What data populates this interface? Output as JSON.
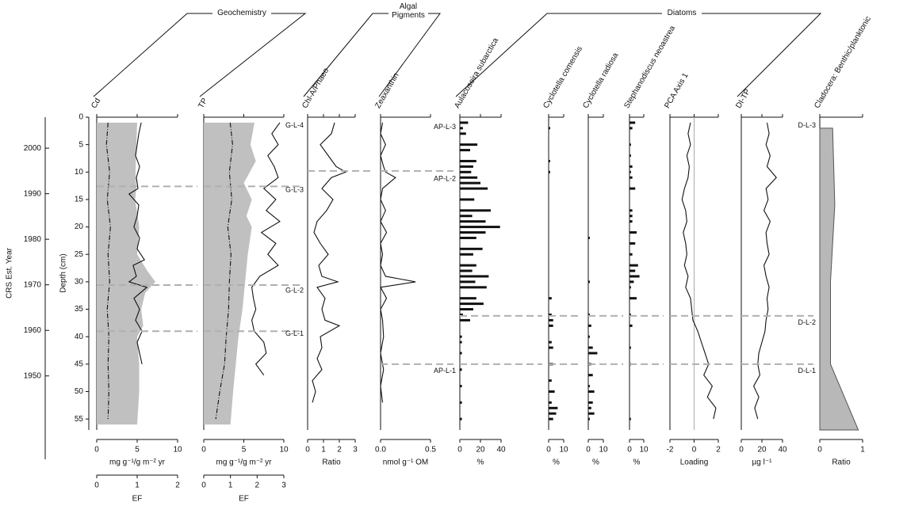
{
  "groups": [
    "Geochemistry",
    "Algal Pigments",
    "Diatoms"
  ],
  "depth_axis": {
    "label": "Depth (cm)",
    "ylim": [
      0,
      57
    ],
    "yticks": [
      0,
      5,
      10,
      15,
      20,
      25,
      30,
      35,
      40,
      45,
      50,
      55
    ]
  },
  "year_axis": {
    "label": "CRS Est. Year",
    "ylim": [
      2006.8,
      1931.7
    ],
    "yticks": [
      2000,
      1990,
      1980,
      1970,
      1960,
      1950
    ]
  },
  "chart_data": [
    {
      "type": "line",
      "title": "Cd",
      "xlabel": "mg g⁻¹/g m⁻² yr",
      "xlim": [
        0,
        10
      ],
      "xticks": [
        0,
        5,
        10
      ],
      "x2label": "EF",
      "x2lim": [
        0,
        2
      ],
      "x2ticks": [
        0,
        1,
        2
      ],
      "boundaries": [
        12.6,
        30.6,
        39
      ],
      "series": [
        {
          "type": "area",
          "axis": "x2",
          "color": "#c0c0c0",
          "depth": [
            1,
            5,
            10,
            13,
            15,
            20,
            25,
            28,
            30,
            32,
            35,
            38,
            40,
            45,
            50,
            56
          ],
          "values": [
            1.0,
            0.98,
            0.96,
            0.98,
            0.95,
            1.05,
            1.0,
            1.25,
            1.45,
            1.2,
            1.1,
            1.15,
            1.0,
            1.05,
            1.05,
            1.0
          ]
        },
        {
          "type": "line",
          "dash": "6 2 1 2",
          "color": "#111111",
          "depth": [
            1,
            5,
            10,
            15,
            20,
            25,
            30,
            35,
            40,
            45,
            50,
            55
          ],
          "values": [
            1.4,
            1.2,
            1.6,
            1.3,
            1.7,
            1.4,
            1.6,
            1.3,
            1.5,
            1.4,
            1.5,
            1.4
          ]
        },
        {
          "type": "line",
          "color": "#111111",
          "depth": [
            1,
            3,
            5,
            7,
            9,
            11,
            13,
            14,
            16,
            18,
            20,
            22,
            24,
            26,
            27,
            29,
            30,
            31,
            33,
            35,
            37,
            39,
            41,
            43,
            45
          ],
          "values": [
            5.5,
            5.2,
            5.0,
            4.8,
            5.3,
            4.9,
            5.1,
            4.0,
            5.2,
            5.0,
            4.6,
            5.3,
            5.0,
            5.9,
            4.5,
            4.9,
            4.0,
            6.2,
            4.6,
            5.3,
            4.8,
            5.6,
            5.0,
            5.3,
            5.6
          ]
        }
      ]
    },
    {
      "type": "line",
      "title": "TP",
      "xlabel": "mg g⁻¹/g m⁻² yr",
      "xlim": [
        0,
        10
      ],
      "xticks": [
        0,
        5,
        10
      ],
      "x2label": "EF",
      "x2lim": [
        0,
        3
      ],
      "x2ticks": [
        0,
        1,
        2,
        3
      ],
      "boundaries": [
        12.6,
        30.6,
        39
      ],
      "series": [
        {
          "type": "area",
          "axis": "x2",
          "color": "#c0c0c0",
          "depth": [
            1,
            5,
            8,
            12,
            15,
            18,
            20,
            25,
            30,
            35,
            40,
            45,
            50,
            56
          ],
          "values": [
            1.9,
            1.75,
            1.95,
            1.5,
            1.8,
            1.6,
            1.8,
            1.65,
            1.55,
            1.45,
            1.3,
            1.2,
            1.1,
            1.0
          ]
        },
        {
          "type": "line",
          "dash": "6 2 1 2",
          "color": "#111111",
          "depth": [
            1,
            5,
            10,
            15,
            20,
            25,
            30,
            35,
            40,
            45,
            50,
            55
          ],
          "values": [
            3.3,
            3.6,
            3.2,
            3.5,
            3.0,
            3.4,
            3.2,
            3.1,
            2.8,
            2.6,
            2.0,
            1.5
          ]
        },
        {
          "type": "line",
          "color": "#111111",
          "depth": [
            1,
            3,
            5,
            7,
            9,
            11,
            13,
            15,
            17,
            19,
            21,
            23,
            25,
            27,
            29,
            31,
            33,
            35,
            37,
            39,
            41,
            43,
            45,
            47
          ],
          "values": [
            9.5,
            8.5,
            9.3,
            8.0,
            8.8,
            9.3,
            7.5,
            9.0,
            7.8,
            9.5,
            7.2,
            9.0,
            8.0,
            9.3,
            7.0,
            6.0,
            6.2,
            6.5,
            6.0,
            6.3,
            7.5,
            7.8,
            6.5,
            7.5
          ]
        }
      ]
    },
    {
      "type": "line",
      "title": "Chl-A/Phaeo",
      "xlabel": "Ratio",
      "xlim": [
        0,
        3
      ],
      "xticks": [
        0,
        1,
        2,
        3
      ],
      "boundaries": [
        9.8
      ],
      "zones": [
        {
          "label": "G-L-4",
          "depth": 1.5
        },
        {
          "label": "G-L-3",
          "depth": 13.3
        },
        {
          "label": "G-L-2",
          "depth": 31.6
        },
        {
          "label": "G-L-1",
          "depth": 39.5
        }
      ],
      "series": [
        {
          "type": "line",
          "color": "#111111",
          "depth": [
            1,
            3,
            5,
            7,
            9,
            10,
            11,
            13,
            15,
            17,
            19,
            21,
            23,
            25,
            27,
            29,
            30,
            31,
            33,
            35,
            37,
            38,
            40,
            42,
            44,
            46,
            48,
            50,
            52
          ],
          "values": [
            1.7,
            1.5,
            0.8,
            1.3,
            1.8,
            2.4,
            1.5,
            0.9,
            1.6,
            1.2,
            0.6,
            0.4,
            0.8,
            1.3,
            0.7,
            0.9,
            1.9,
            0.6,
            1.1,
            0.9,
            1.1,
            2.0,
            0.8,
            0.9,
            0.6,
            0.9,
            0.3,
            0.5,
            0.3
          ]
        }
      ]
    },
    {
      "type": "line",
      "title": "Zeaxanthin",
      "xlabel": "nmol g⁻¹ OM",
      "xlim": [
        0,
        0.5
      ],
      "xticks": [
        {
          "value": 0,
          "label": "0.0"
        },
        0.5
      ],
      "boundaries": [
        9.8,
        45
      ],
      "series": [
        {
          "type": "line",
          "color": "#111111",
          "depth": [
            1,
            3,
            5,
            7,
            9,
            10,
            11,
            13,
            15,
            17,
            19,
            21,
            23,
            25,
            27,
            29,
            30,
            31,
            33,
            35,
            37,
            40,
            43,
            46,
            49,
            52
          ],
          "values": [
            0.02,
            0.0,
            0.05,
            0.0,
            0.03,
            0.05,
            0.15,
            0.02,
            0.0,
            0.05,
            0.0,
            0.06,
            0.0,
            0.02,
            0.0,
            0.05,
            0.35,
            0.0,
            0.06,
            0.0,
            0.02,
            0.03,
            0.0,
            0.03,
            0.0,
            0.02
          ]
        }
      ]
    },
    {
      "type": "bar",
      "title": "Aulacoseira subarctica",
      "xlabel": "%",
      "xlim": [
        0,
        40
      ],
      "xticks": [
        0,
        20,
        40
      ],
      "boundaries": [
        36.2,
        45
      ],
      "zones": [
        {
          "label": "AP-L-3",
          "depth": 1.8
        },
        {
          "label": "AP-L-2",
          "depth": 11.3
        },
        {
          "label": "AP-L-1",
          "depth": 46.3
        }
      ],
      "series": [
        {
          "type": "bar",
          "color": "#111111",
          "depth": [
            1,
            2,
            3,
            5,
            6,
            8,
            9,
            10,
            11,
            12,
            13,
            15,
            17,
            18,
            19,
            20,
            21,
            22,
            24,
            25,
            27,
            28,
            29,
            30,
            31,
            33,
            34,
            35,
            36,
            37,
            40,
            41,
            43,
            46,
            49,
            52,
            55
          ],
          "values": [
            8,
            3,
            6,
            17,
            10,
            16,
            13,
            11,
            17,
            20,
            27,
            14,
            30,
            12,
            25,
            39,
            25,
            16,
            22,
            13,
            16,
            12,
            28,
            15,
            26,
            16,
            23,
            13,
            3,
            10,
            2,
            2,
            2,
            2,
            2,
            2,
            2
          ]
        }
      ]
    },
    {
      "type": "bar",
      "title": "Cyclotella comensis",
      "xlabel": "%",
      "xlim": [
        0,
        10
      ],
      "xticks": [
        0,
        10
      ],
      "boundaries": [
        36.2,
        45
      ],
      "series": [
        {
          "type": "bar",
          "color": "#111111",
          "depth": [
            2,
            8,
            10,
            33,
            36,
            37,
            38,
            41,
            42,
            45,
            48,
            50,
            52,
            53,
            54,
            55
          ],
          "values": [
            1,
            1,
            1,
            2,
            2,
            3,
            3,
            2,
            3,
            3,
            2,
            4,
            2,
            6,
            5,
            3
          ]
        }
      ]
    },
    {
      "type": "bar",
      "title": "Cyclotella radiosa",
      "xlabel": "%",
      "xlim": [
        0,
        10
      ],
      "xticks": [
        0,
        10
      ],
      "boundaries": [
        36.2,
        45
      ],
      "series": [
        {
          "type": "bar",
          "color": "#111111",
          "depth": [
            22,
            30,
            36,
            38,
            40,
            42,
            43,
            45,
            47,
            49,
            50,
            52,
            53,
            54,
            55
          ],
          "values": [
            1,
            1,
            1,
            2,
            1,
            3,
            6,
            2,
            3,
            1,
            4,
            3,
            2,
            4,
            1
          ]
        }
      ]
    },
    {
      "type": "bar",
      "title": "Stephanodiscus neoastrea",
      "xlabel": "%",
      "xlim": [
        0,
        10
      ],
      "xticks": [
        0,
        10
      ],
      "boundaries": [
        36.2,
        45
      ],
      "series": [
        {
          "type": "bar",
          "color": "#111111",
          "depth": [
            1,
            2,
            5,
            7,
            9,
            10,
            11,
            13,
            17,
            18,
            19,
            21,
            23,
            25,
            27,
            28,
            29,
            30,
            31,
            33,
            36,
            38,
            42,
            45,
            55
          ],
          "values": [
            4,
            2,
            1,
            1,
            2,
            1,
            2,
            4,
            2,
            2,
            2,
            5,
            4,
            2,
            6,
            4,
            7,
            3,
            1,
            5,
            1,
            2,
            1,
            1,
            1
          ]
        }
      ]
    },
    {
      "type": "line",
      "title": "PCA Axis 1",
      "xlabel": "Loading",
      "xlim": [
        -2,
        2
      ],
      "xticks": [
        -2,
        0,
        2
      ],
      "zeroline": true,
      "boundaries": [
        36.2,
        45
      ],
      "series": [
        {
          "type": "line",
          "color": "#111111",
          "depth": [
            1,
            3,
            5,
            7,
            9,
            11,
            13,
            15,
            17,
            19,
            21,
            23,
            25,
            27,
            29,
            31,
            33,
            35,
            37,
            39,
            41,
            43,
            45,
            47,
            49,
            51,
            53,
            55
          ],
          "values": [
            -0.3,
            -0.5,
            -0.3,
            -0.6,
            -0.4,
            -0.5,
            -0.8,
            -1.0,
            -0.7,
            -0.6,
            -0.9,
            -0.7,
            -0.6,
            -0.8,
            -0.5,
            -0.7,
            -0.3,
            -0.2,
            -0.1,
            0.3,
            0.6,
            0.9,
            1.2,
            0.8,
            1.5,
            1.1,
            1.8,
            1.6
          ]
        }
      ]
    },
    {
      "type": "line",
      "title": "DI-TP",
      "xlabel": "µg l⁻¹",
      "xlim": [
        0,
        40
      ],
      "xticks": [
        0,
        20,
        40
      ],
      "boundaries": [
        36.2,
        45
      ],
      "series": [
        {
          "type": "line",
          "color": "#111111",
          "depth": [
            1,
            3,
            5,
            7,
            9,
            11,
            13,
            15,
            17,
            19,
            21,
            23,
            25,
            27,
            29,
            31,
            33,
            35,
            37,
            39,
            41,
            43,
            45,
            47,
            49,
            51,
            53,
            55
          ],
          "values": [
            25,
            27,
            24,
            28,
            25,
            34,
            24,
            26,
            22,
            28,
            24,
            25,
            27,
            22,
            24,
            27,
            25,
            26,
            24,
            23,
            20,
            17,
            16,
            18,
            12,
            17,
            13,
            16
          ]
        }
      ]
    },
    {
      "type": "area",
      "title": "Cladocera: Benthic/planktonic",
      "xlabel": "Ratio",
      "xlim": [
        0,
        1
      ],
      "xticks": [
        0,
        1
      ],
      "zones": [
        {
          "label": "D-L-3",
          "depth": 1.5
        },
        {
          "label": "D-L-2",
          "depth": 37.5
        },
        {
          "label": "D-L-1",
          "depth": 46.3
        }
      ],
      "series": [
        {
          "type": "area",
          "color": "#b8b8b8",
          "depth": [
            2,
            16,
            30,
            45,
            57
          ],
          "values": [
            0.3,
            0.35,
            0.25,
            0.25,
            0.9
          ]
        }
      ]
    }
  ]
}
